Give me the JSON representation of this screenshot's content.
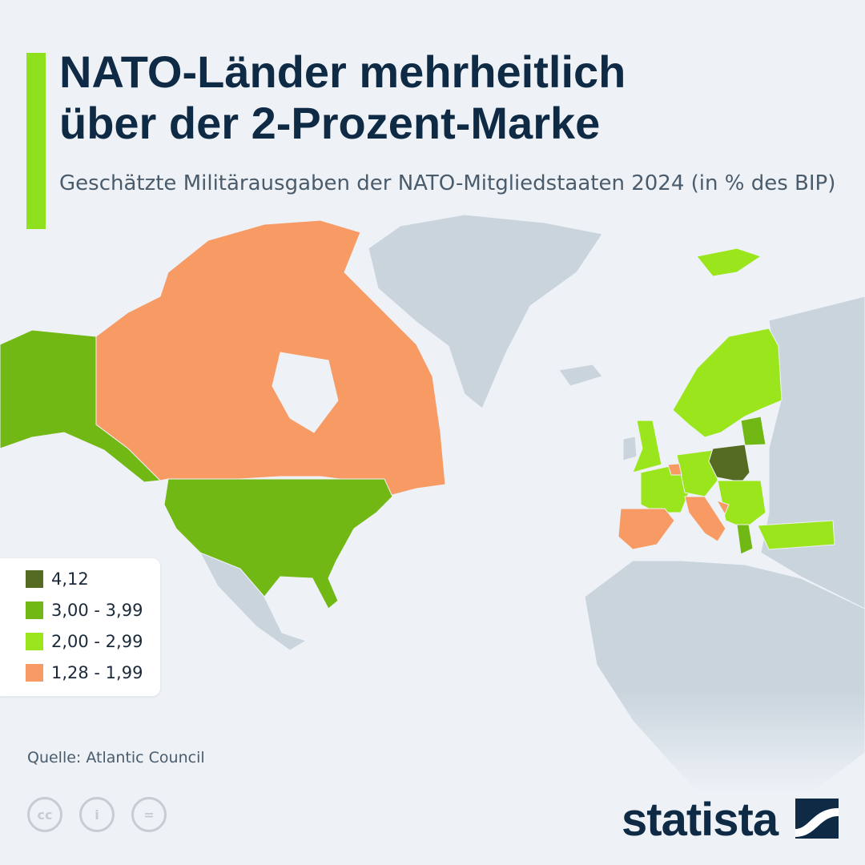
{
  "header": {
    "title_line1": "NATO-Länder mehrheitlich",
    "title_line2": "über der 2-Prozent-Marke",
    "subtitle": "Geschätzte Militärausgaben der NATO-Mitgliedstaaten 2024 (in % des BIP)",
    "accent_color": "#8fe01e"
  },
  "colors": {
    "background": "#eef2f7",
    "non_member": "#c9d4dd",
    "cat_4_12": "#566b22",
    "cat_3_00_3_99": "#72b815",
    "cat_2_00_2_99": "#9be51d",
    "cat_1_28_1_99": "#f79a64"
  },
  "legend": {
    "items": [
      {
        "label": "4,12",
        "color": "#566b22"
      },
      {
        "label": "3,00 - 3,99",
        "color": "#72b815"
      },
      {
        "label": "2,00 - 2,99",
        "color": "#9be51d"
      },
      {
        "label": "1,28 - 1,99",
        "color": "#f79a64"
      }
    ]
  },
  "map": {
    "categories": {
      "Poland": "4,12",
      "USA": "3,00 - 3,99",
      "Estonia": "3,00 - 3,99",
      "Latvia": "3,00 - 3,99",
      "Greece": "3,00 - 3,99",
      "Norway": "2,00 - 2,99",
      "Sweden": "2,00 - 2,99",
      "Finland": "2,00 - 2,99",
      "UK": "2,00 - 2,99",
      "France": "2,00 - 2,99",
      "Germany": "2,00 - 2,99",
      "Lithuania": "2,00 - 2,99",
      "Romania": "2,00 - 2,99",
      "Turkey": "2,00 - 2,99",
      "Denmark": "2,00 - 2,99",
      "Canada": "1,28 - 1,99",
      "Spain": "1,28 - 1,99",
      "Italy": "1,28 - 1,99",
      "Belgium": "1,28 - 1,99",
      "Croatia": "1,28 - 1,99"
    }
  },
  "footer": {
    "source": "Quelle: Atlantic Council",
    "cc_icons": [
      "cc",
      "by",
      "nd"
    ],
    "cc_labels": [
      "cc",
      "i",
      "="
    ],
    "brand": "statista"
  }
}
